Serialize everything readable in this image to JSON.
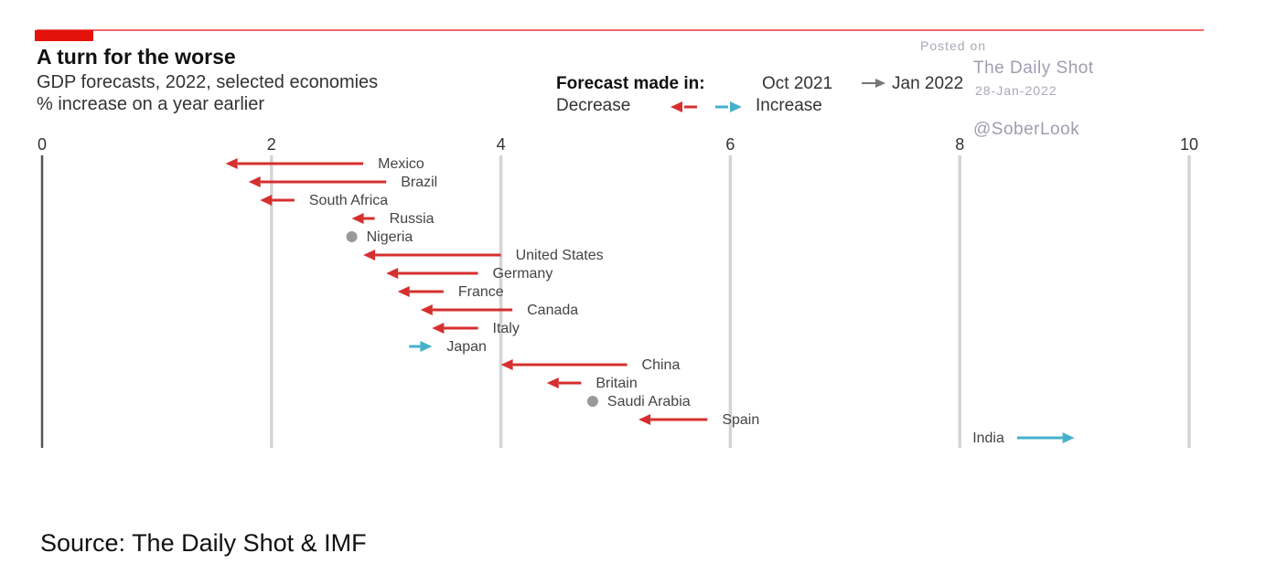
{
  "header": {
    "title": "A turn for the worse",
    "subtitle": "GDP forecasts, 2022, selected economies",
    "unit_note": "% increase on a year earlier"
  },
  "legend": {
    "made_in_label": "Forecast made in:",
    "from_label": "Oct 2021",
    "to_label": "Jan 2022",
    "decrease_label": "Decrease",
    "increase_label": "Increase"
  },
  "watermark": {
    "posted_on": "Posted on",
    "site": "The Daily Shot",
    "date": "28-Jan-2022",
    "handle": "@SoberLook"
  },
  "source": "Source: The Daily Shot & IMF",
  "colors": {
    "decrease": "#d62f2f",
    "increase": "#45b0cc",
    "unchanged": "#999999",
    "brand": "#e3120b"
  },
  "chart_data": {
    "type": "arrow-dot",
    "title": "A turn for the worse",
    "subtitle": "GDP forecasts, 2022, selected economies",
    "ylabel": "% increase on a year earlier",
    "xlim": [
      0,
      10
    ],
    "x_ticks": [
      "0",
      "2",
      "4",
      "6",
      "8",
      "10"
    ],
    "grid": true,
    "series_labels": [
      "Oct 2021",
      "Jan 2022"
    ],
    "countries": [
      {
        "name": "Mexico",
        "oct_2021": 2.8,
        "jan_2022": 1.6
      },
      {
        "name": "Brazil",
        "oct_2021": 3.0,
        "jan_2022": 1.8
      },
      {
        "name": "South Africa",
        "oct_2021": 2.2,
        "jan_2022": 1.9
      },
      {
        "name": "Russia",
        "oct_2021": 2.9,
        "jan_2022": 2.7
      },
      {
        "name": "Nigeria",
        "oct_2021": 2.7,
        "jan_2022": 2.7
      },
      {
        "name": "United States",
        "oct_2021": 4.0,
        "jan_2022": 2.8
      },
      {
        "name": "Germany",
        "oct_2021": 3.8,
        "jan_2022": 3.0
      },
      {
        "name": "France",
        "oct_2021": 3.5,
        "jan_2022": 3.1
      },
      {
        "name": "Canada",
        "oct_2021": 4.1,
        "jan_2022": 3.3
      },
      {
        "name": "Italy",
        "oct_2021": 3.8,
        "jan_2022": 3.4
      },
      {
        "name": "Japan",
        "oct_2021": 3.2,
        "jan_2022": 3.4
      },
      {
        "name": "China",
        "oct_2021": 5.1,
        "jan_2022": 4.0
      },
      {
        "name": "Britain",
        "oct_2021": 4.7,
        "jan_2022": 4.4
      },
      {
        "name": "Saudi Arabia",
        "oct_2021": 4.8,
        "jan_2022": 4.8
      },
      {
        "name": "Spain",
        "oct_2021": 5.8,
        "jan_2022": 5.2
      },
      {
        "name": "India",
        "oct_2021": 8.5,
        "jan_2022": 9.0
      }
    ]
  }
}
